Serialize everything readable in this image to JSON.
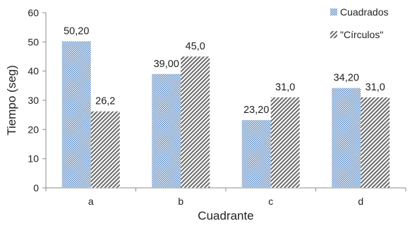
{
  "chart_data": {
    "type": "bar",
    "categories": [
      "a",
      "b",
      "c",
      "d"
    ],
    "series": [
      {
        "name": "Cuadrados",
        "values": [
          50.2,
          39.0,
          23.2,
          34.2
        ],
        "labels": [
          "50,20",
          "39,00",
          "23,20",
          "34,20"
        ],
        "pattern": "checker",
        "color": "#4f81bd"
      },
      {
        "name": "\"Círculos\"",
        "values": [
          26.2,
          45.0,
          31.0,
          31.0
        ],
        "labels": [
          "26,2",
          "45,0",
          "31,0",
          "31,0"
        ],
        "pattern": "diagonal",
        "color": "#595959"
      }
    ],
    "title": "",
    "xlabel": "Cuadrante",
    "ylabel": "Tiempo (seg)",
    "ylim": [
      0,
      60
    ],
    "yticks": [
      0,
      10,
      20,
      30,
      40,
      50,
      60
    ],
    "grid": false,
    "legend": "top-right"
  }
}
